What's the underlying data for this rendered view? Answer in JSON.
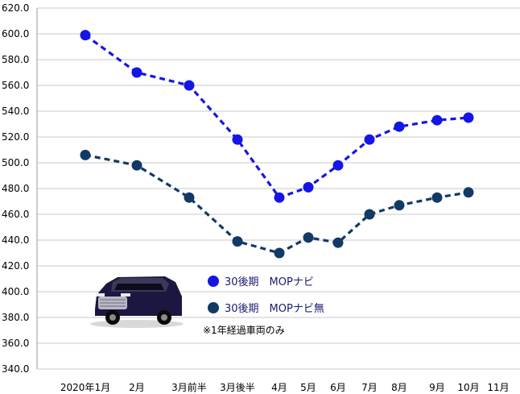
{
  "chart_data": {
    "type": "line",
    "categories": [
      "2020年1月",
      "2月",
      "3月前半",
      "3月後半",
      "4月",
      "5月",
      "6月",
      "7月",
      "8月",
      "9月",
      "10月",
      "11月"
    ],
    "ylim": [
      340,
      620
    ],
    "y_ticks": [
      "340.0",
      "360.0",
      "380.0",
      "400.0",
      "420.0",
      "440.0",
      "460.0",
      "480.0",
      "500.0",
      "520.0",
      "540.0",
      "560.0",
      "580.0",
      "600.0",
      "620.0"
    ],
    "grid": "horizontal",
    "series": [
      {
        "name": "30後期　MOPナビ",
        "color": "#1515e6",
        "values": [
          599,
          570,
          560,
          518,
          473,
          481,
          498,
          518,
          528,
          533,
          535,
          null
        ]
      },
      {
        "name": "30後期　MOPナビ無",
        "color": "#123a66",
        "values": [
          506,
          498,
          473,
          439,
          430,
          442,
          438,
          460,
          467,
          473,
          477,
          null
        ]
      }
    ],
    "legend_position": "center-left",
    "annotation": "※1年経過車両のみ"
  }
}
